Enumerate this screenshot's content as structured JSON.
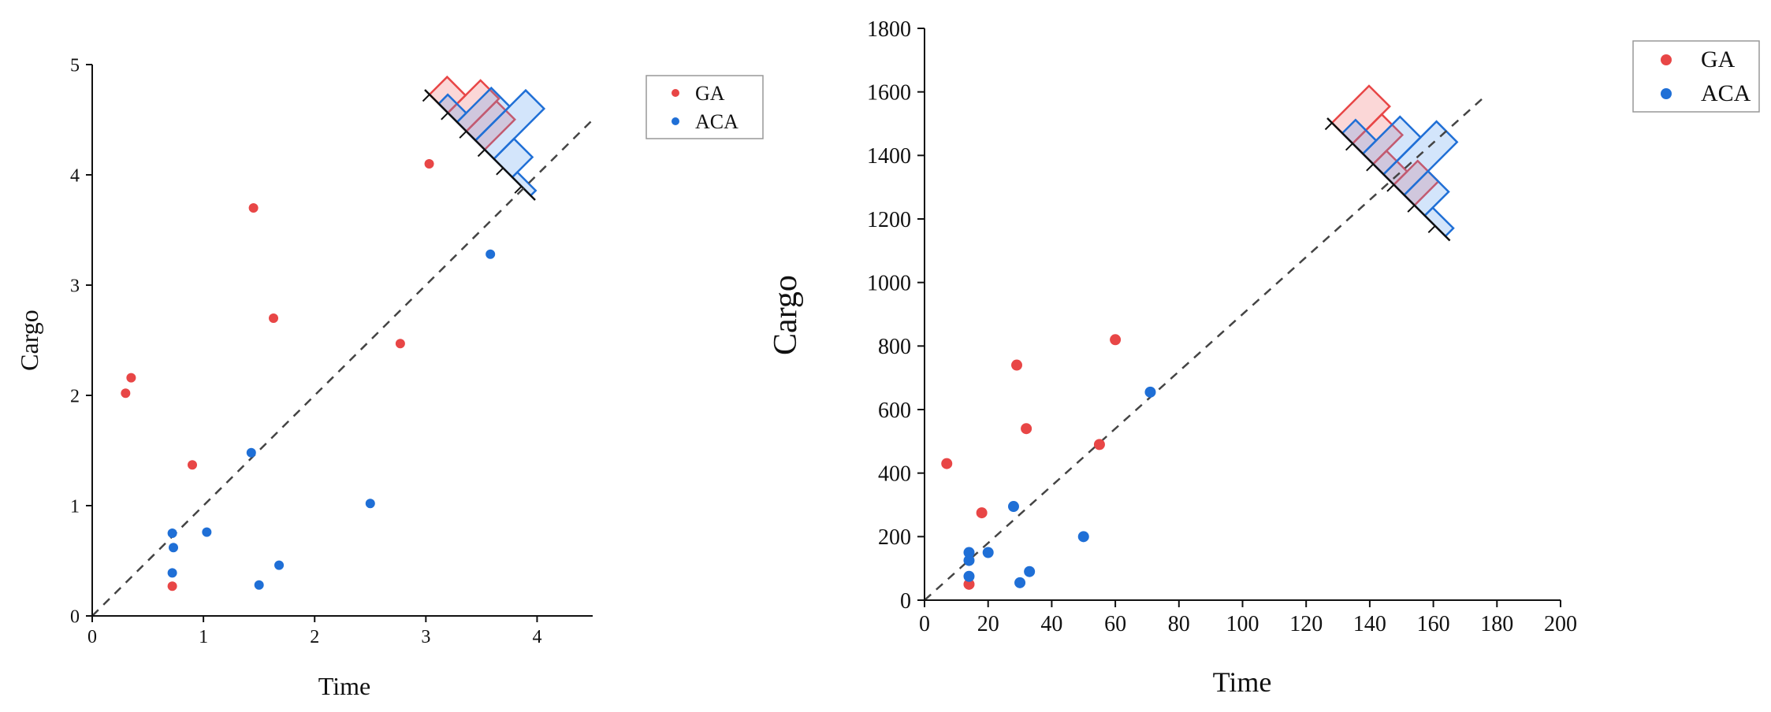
{
  "chart_data": [
    {
      "type": "scatter",
      "title": "",
      "xlabel": "Time",
      "ylabel": "Cargo",
      "xlim": [
        0,
        4.5
      ],
      "ylim": [
        0,
        5
      ],
      "xticks": [
        "0",
        "1",
        "2",
        "3",
        "4"
      ],
      "yticks": [
        "0",
        "1",
        "2",
        "3",
        "4",
        "5"
      ],
      "legend_position": "top-right",
      "series": [
        {
          "name": "GA",
          "color": "#e84646",
          "points": [
            [
              0.3,
              2.02
            ],
            [
              0.35,
              2.16
            ],
            [
              0.72,
              0.27
            ],
            [
              0.9,
              1.37
            ],
            [
              1.45,
              3.7
            ],
            [
              1.63,
              2.7
            ],
            [
              2.77,
              2.47
            ],
            [
              3.03,
              4.1
            ]
          ]
        },
        {
          "name": "ACA",
          "color": "#1f6fd6",
          "points": [
            [
              0.72,
              0.75
            ],
            [
              0.73,
              0.62
            ],
            [
              0.72,
              0.39
            ],
            [
              1.03,
              0.76
            ],
            [
              1.43,
              1.48
            ],
            [
              1.5,
              0.28
            ],
            [
              1.68,
              0.46
            ],
            [
              2.5,
              1.02
            ],
            [
              3.58,
              3.28
            ]
          ]
        }
      ],
      "reference_line": "y = x (dashed)",
      "marginal_histograms": {
        "orientation": "diagonal, top-right corner",
        "GA_relative_heights": [
          0.35,
          0.65,
          0.6
        ],
        "ACA_relative_heights": [
          0.18,
          0.68,
          1.0,
          0.4,
          0.1
        ]
      }
    },
    {
      "type": "scatter",
      "title": "",
      "xlabel": "Time",
      "ylabel": "Cargo",
      "xlim": [
        0,
        200
      ],
      "ylim": [
        0,
        1800
      ],
      "xticks": [
        "0",
        "20",
        "40",
        "60",
        "80",
        "100",
        "120",
        "140",
        "160",
        "180",
        "200"
      ],
      "yticks": [
        "0",
        "200",
        "400",
        "600",
        "800",
        "1000",
        "1200",
        "1400",
        "1600",
        "1800"
      ],
      "legend_position": "top-right",
      "series": [
        {
          "name": "GA",
          "color": "#e84646",
          "points": [
            [
              7,
              430
            ],
            [
              14,
              50
            ],
            [
              18,
              275
            ],
            [
              29,
              740
            ],
            [
              32,
              540
            ],
            [
              55,
              490
            ],
            [
              60,
              820
            ]
          ]
        },
        {
          "name": "ACA",
          "color": "#1f6fd6",
          "points": [
            [
              14,
              150
            ],
            [
              14,
              125
            ],
            [
              14,
              75
            ],
            [
              20,
              150
            ],
            [
              28,
              295
            ],
            [
              30,
              55
            ],
            [
              33,
              90
            ],
            [
              50,
              200
            ],
            [
              71,
              655
            ]
          ]
        }
      ],
      "reference_line": "y = 9x (dashed)",
      "marginal_histograms": {
        "orientation": "diagonal, top-right corner",
        "GA_relative_heights": [
          0.7,
          0.55,
          0.25,
          0.45
        ],
        "ACA_relative_heights": [
          0.25,
          0.7,
          1.0,
          0.45,
          0.15
        ]
      }
    }
  ]
}
